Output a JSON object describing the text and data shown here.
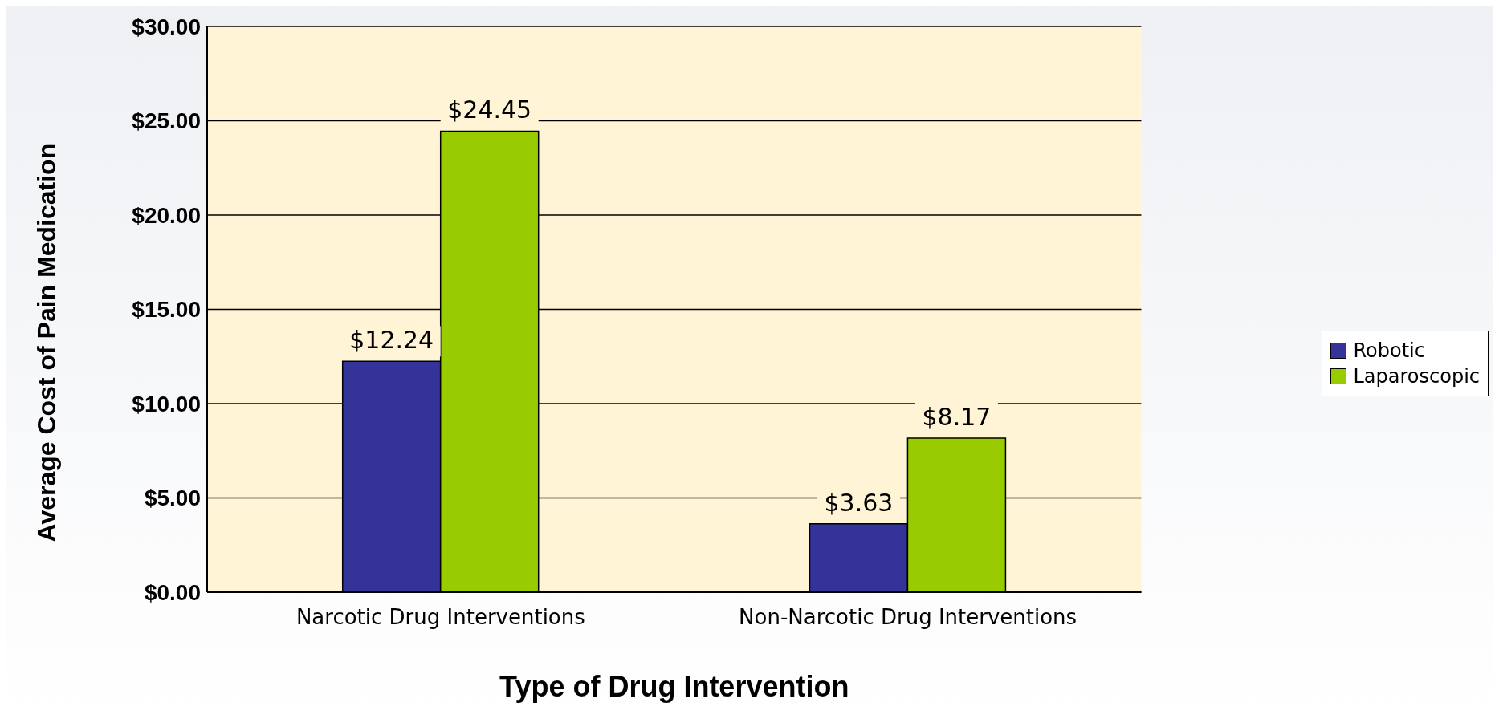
{
  "chart_data": {
    "type": "bar",
    "xlabel": "Type of Drug Intervention",
    "ylabel": "Average Cost of Pain Medication",
    "categories": [
      "Narcotic Drug Interventions",
      "Non-Narcotic Drug Interventions"
    ],
    "series": [
      {
        "name": "Robotic",
        "color": "#333399",
        "values": [
          12.24,
          3.63
        ],
        "value_labels": [
          "$12.24",
          "$3.63"
        ]
      },
      {
        "name": "Laparoscopic",
        "color": "#99cc00",
        "values": [
          24.45,
          8.17
        ],
        "value_labels": [
          "$24.45",
          "$8.17"
        ]
      }
    ],
    "ylim": [
      0,
      30
    ],
    "yticks": [
      {
        "value": 0,
        "label": "$0.00"
      },
      {
        "value": 5,
        "label": "$5.00"
      },
      {
        "value": 10,
        "label": "$10.00"
      },
      {
        "value": 15,
        "label": "$15.00"
      },
      {
        "value": 20,
        "label": "$20.00"
      },
      {
        "value": 25,
        "label": "$25.00"
      },
      {
        "value": 30,
        "label": "$30.00"
      }
    ],
    "grid": "y",
    "legend": "right"
  }
}
